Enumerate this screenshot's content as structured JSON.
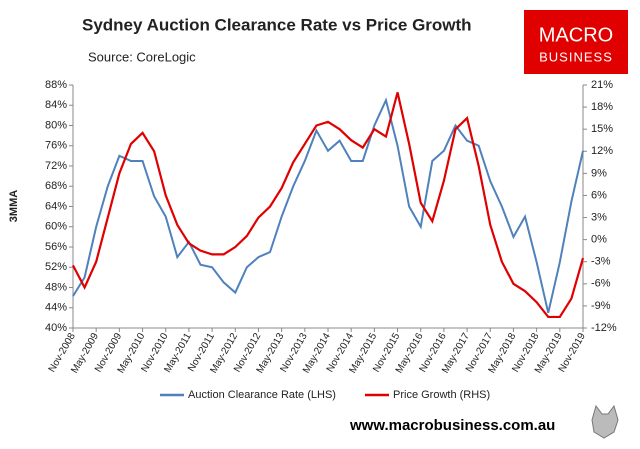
{
  "chart_data": {
    "type": "line",
    "title": "Sydney Auction Clearance Rate vs Price Growth",
    "subtitle": "Source: CoreLogic",
    "logo": [
      "MACRO",
      "BUSINESS"
    ],
    "ylabel": "3MMA",
    "footer": "www.macrobusiness.com.au",
    "categories": [
      "Nov-2008",
      null,
      "May-2009",
      null,
      "Nov-2009",
      null,
      "May-2010",
      null,
      "Nov-2010",
      null,
      "May-2011",
      null,
      "Nov-2011",
      null,
      "May-2012",
      null,
      "Nov-2012",
      null,
      "May-2013",
      null,
      "Nov-2013",
      null,
      "May-2014",
      null,
      "Nov-2014",
      null,
      "May-2015",
      null,
      "Nov-2015",
      null,
      "May-2016",
      null,
      "Nov-2016",
      null,
      "May-2017",
      null,
      "Nov-2017",
      null,
      "May-2018",
      null,
      "Nov-2018",
      null,
      "May-2019",
      null,
      "Nov-2019"
    ],
    "series": [
      {
        "name": "Auction Clearance Rate (LHS)",
        "color": "#4f81bd",
        "axis": "y",
        "values": [
          46.3,
          50,
          60,
          68,
          74,
          73,
          73,
          66,
          62,
          54,
          57,
          52.5,
          52,
          49,
          47,
          52,
          54,
          55,
          62,
          68,
          73,
          79,
          75,
          77,
          73,
          73,
          80,
          85,
          76,
          64,
          60,
          73,
          75,
          80,
          77,
          76,
          69,
          64,
          58,
          62,
          53,
          43,
          53,
          65,
          75
        ]
      },
      {
        "name": "Price Growth (RHS)",
        "color": "#e00000",
        "axis": "y2",
        "values": [
          -3.5,
          -6.5,
          -3,
          3,
          9,
          13,
          14.5,
          12,
          6,
          2,
          -0.5,
          -1.5,
          -2,
          -2,
          -1,
          0.5,
          3,
          4.5,
          7,
          10.5,
          13,
          15.5,
          16,
          15,
          13.5,
          12.5,
          15,
          14,
          20,
          13,
          5,
          2.5,
          8,
          15,
          16.5,
          10,
          2,
          -3,
          -6,
          -7,
          -8.5,
          -10.5,
          -10.5,
          -8,
          -2.5
        ]
      }
    ],
    "ylim": [
      40,
      88
    ],
    "yticks": [
      {
        "value": 40,
        "label": "40%"
      },
      {
        "value": 44,
        "label": "44%"
      },
      {
        "value": 48,
        "label": "48%"
      },
      {
        "value": 52,
        "label": "52%"
      },
      {
        "value": 56,
        "label": "56%"
      },
      {
        "value": 60,
        "label": "60%"
      },
      {
        "value": 64,
        "label": "64%"
      },
      {
        "value": 68,
        "label": "68%"
      },
      {
        "value": 72,
        "label": "72%"
      },
      {
        "value": 76,
        "label": "76%"
      },
      {
        "value": 80,
        "label": "80%"
      },
      {
        "value": 84,
        "label": "84%"
      },
      {
        "value": 88,
        "label": "88%"
      }
    ],
    "y2lim": [
      -12,
      21
    ],
    "y2ticks": [
      {
        "value": -12,
        "label": "-12%"
      },
      {
        "value": -9,
        "label": "-9%"
      },
      {
        "value": -6,
        "label": "-6%"
      },
      {
        "value": -3,
        "label": "-3%"
      },
      {
        "value": 0,
        "label": "0%"
      },
      {
        "value": 3,
        "label": "3%"
      },
      {
        "value": 6,
        "label": "6%"
      },
      {
        "value": 9,
        "label": "9%"
      },
      {
        "value": 12,
        "label": "12%"
      },
      {
        "value": 15,
        "label": "15%"
      },
      {
        "value": 18,
        "label": "18%"
      },
      {
        "value": 21,
        "label": "21%"
      }
    ],
    "grid": false
  }
}
